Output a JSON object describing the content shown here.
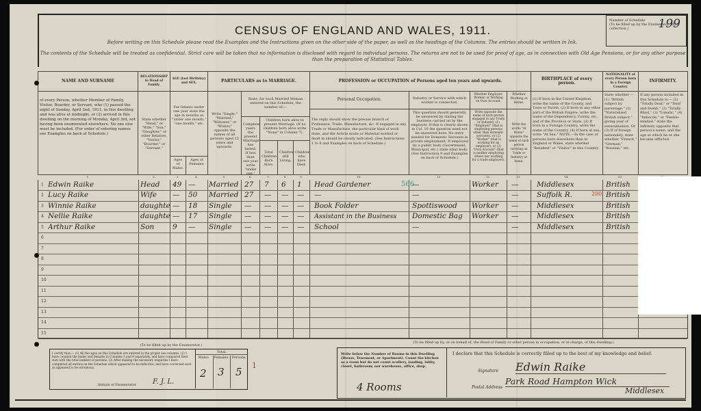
{
  "document": {
    "title": "CENSUS OF ENGLAND AND WALES, 1911.",
    "instruction": "Before writing on this Schedule please read the Examples and the Instructions given on the other side of the paper, as well as the headings of the Columns. The entries should be written in Ink.",
    "confidential": "The contents of the Schedule will be treated as confidential. Strict care will be taken that no information is disclosed with regard to individual persons. The returns are not to be used for proof of age, as in connection with Old Age Pensions, or for any other purpose than the preparation of Statistical Tables.",
    "schedule_label": "Number of Schedule",
    "schedule_note": "(To be filled up by the Enumerator after collection.)",
    "schedule_number": "199"
  },
  "headers": {
    "name": "NAME AND SURNAME",
    "name_desc": "of every Person, whether Member of Family, Visitor, Boarder, or Servant, who (1) passed the night of Sunday, April 2nd, 1911, in this dwelling and was alive at midnight, or (2) arrived in this dwelling on the morning of Monday, April 3rd, not having been enumerated elsewhere. No one else must be included. (For order of entering names see Examples on back of Schedule.)",
    "relationship": "RELATIONSHIP to Head of Family.",
    "relationship_desc": "State whether \"Head,\" or \"Wife,\" \"Son,\" \"Daughter,\" or other Relative, \"Visitor,\" \"Boarder,\" or \"Servant.\"",
    "age": "AGE (last Birthday) and SEX.",
    "age_desc": "For Infants under one year state the age in months as \"under one month,\" \"one month,\" etc.",
    "age_males": "Ages of Males.",
    "age_females": "Ages of Females.",
    "marriage": "PARTICULARS as to MARRIAGE.",
    "marriage_desc": "Write \"Single,\" \"Married,\" \"Widower,\" or \"Widow,\" opposite the names of all persons aged 15 years and upwards.",
    "married_woman": "State, for each Married Woman entered on this Schedule, the number of:—",
    "years_married": "Completed years the present Marriage has lasted. If less than one year write \"under one.\"",
    "children_born": "Children born alive to present Marriage. (If no children born alive write \"None\" in Column 7).",
    "total_children": "Total Children Born Alive.",
    "children_living": "Children still Living.",
    "children_died": "Children who have Died.",
    "profession": "PROFESSION or OCCUPATION of Persons aged ten years and upwards.",
    "personal_occupation": "Personal Occupation.",
    "personal_occupation_desc": "The reply should show the precise branch of Profession, Trade, Manufacture, &c. If engaged in any Trade or Manufacture, the particular kind of work done, and the Article made or Material worked or dealt in should be clearly indicated. (See Instructions 1 to 8 and Examples on back of Schedule.)",
    "industry": "Industry or Service with which worker is connected.",
    "industry_desc": "This question should generally be answered by stating the business carried on by the employer. If this is clearly shown in Col. 10 the question need not be answered here. No entry needed for Domestic Servants in private employment. If employed by a public body (Government, Municipal, etc.) state what body. (See Instruction 9 and Examples on back of Schedule.)",
    "employer": "Whether Employer, Worker, or Working on Own Account.",
    "employer_desc": "Write opposite the name of each person engaged in any Trade or Industry, (1) \"Employer\" (that is employing persons other than domestic servants), or (2) \"Worker\" (that is working for an employer), or (3) \"Own Account\" (that is neither employing others nor working for a trade employer).",
    "at_home": "Whether Working at Home.",
    "at_home_desc": "Write the words \"At Home\" opposite the name of each person carrying on Trade or Industry at home.",
    "birthplace": "BIRTHPLACE of every person.",
    "birthplace_desc": "(1) If born in the United Kingdom, write the name of the County, and Town or Parish. (2) If born in any other part of the British Empire, write the name of the Dependency, Colony, etc., and of the Province or State. (3) If born in a Foreign Country, write the name of the Country. (4) If born at sea, write \"At Sea.\" NOTE.—In the case of persons born elsewhere than in England or Wales, state whether \"Resident\" or \"Visitor\" in this Country.",
    "nationality": "NATIONALITY of every Person born in a Foreign Country.",
    "nationality_desc": "State whether — (1) \"British subject by parentage.\" (2) \"Naturalised British subject,\" giving year of naturalisation. Or (3) If of foreign nationality, state whether \"French,\" \"German,\" \"Russian,\" etc.",
    "infirmity": "INFIRMITY.",
    "infirmity_desc": "If any person included in this Schedule is:— (1) \"Totally Deaf,\" or \"Deaf and Dumb,\" (2) \"Totally Blind,\" (3) \"Lunatic,\" (4) \"Imbecile,\" or \"Feeble-minded,\" state the infirmity opposite that person's name, and the age at which he or she became afflicted.",
    "column_numbers": [
      "1.",
      "2.",
      "3.",
      "4.",
      "5.",
      "6.",
      "7.",
      "8.",
      "9.",
      "10.",
      "11.",
      "12.",
      "13.",
      "14.",
      "15.",
      "16."
    ]
  },
  "rows": [
    {
      "no": "1",
      "name": "Edwin Raike",
      "relationship": "Head",
      "age_male": "49",
      "age_female": "—",
      "marriage": "Married",
      "years": "27",
      "total": "7",
      "living": "6",
      "died": "1",
      "occupation": "Head Gardener",
      "occ_code": "566",
      "industry": "—",
      "employment": "Worker",
      "at_home": "—",
      "birthplace": "Middlesex",
      "nationality": "British"
    },
    {
      "no": "2",
      "name": "Lucy Raike",
      "relationship": "Wife",
      "age_male": "—",
      "age_female": "50",
      "marriage": "Married",
      "years": "27",
      "total": "—",
      "living": "—",
      "died": "—",
      "occupation": "—",
      "occ_code": "",
      "industry": "—",
      "employment": "",
      "at_home": "—",
      "birthplace": "Suffolk R.",
      "bp_code": "200",
      "nationality": "British"
    },
    {
      "no": "3",
      "name": "Winnie Raike",
      "relationship": "daughter",
      "age_male": "—",
      "age_female": "18",
      "marriage": "Single",
      "years": "—",
      "total": "—",
      "living": "—",
      "died": "—",
      "occupation": "Book Folder",
      "occ_code": "",
      "industry": "Spottiswood",
      "employment": "Worker",
      "at_home": "—",
      "birthplace": "Middlesex",
      "nationality": "British"
    },
    {
      "no": "4",
      "name": "Nellie Raike",
      "relationship": "daughter",
      "age_male": "—",
      "age_female": "17",
      "marriage": "Single",
      "years": "—",
      "total": "—",
      "living": "—",
      "died": "—",
      "occupation": "Assistant in the Business",
      "occ_code": "",
      "industry": "Domestic Bag",
      "employment": "Worker",
      "at_home": "—",
      "birthplace": "Middlesex",
      "nationality": "British"
    },
    {
      "no": "5",
      "name": "Arthur Raike",
      "relationship": "Son",
      "age_male": "9",
      "age_female": "—",
      "marriage": "Single",
      "years": "—",
      "total": "—",
      "living": "—",
      "died": "—",
      "occupation": "School",
      "occ_code": "",
      "industry": "—",
      "employment": "",
      "at_home": "—",
      "birthplace": "Middlesex",
      "nationality": "British"
    }
  ],
  "row_numbers": [
    "1",
    "2",
    "3",
    "4",
    "5",
    "6",
    "7",
    "8",
    "9",
    "10",
    "11",
    "12",
    "13",
    "14",
    "15"
  ],
  "enumerator": {
    "heading": "(To be filled up by the Enumerator.)",
    "certify": "I certify that:— (1) All the ages on this Schedule are entered in the proper sex columns. (2) I have counted the males and females in Columns 3 and 4 separately, and have compared their sum with the total number of persons. (3) After making the necessary enquiries I have completed all entries on the Schedule which appeared to be defective, and have corrected such as appeared to be erroneous.",
    "initials_label": "Initials of Enumerator",
    "initials": "F. J. L.",
    "total_label": "Total.",
    "males_label": "Males.",
    "females_label": "Females.",
    "persons_label": "Persons.",
    "males": "2",
    "females": "3",
    "persons": "5",
    "mark": "1"
  },
  "occupier": {
    "heading": "(To be filled up by, or on behalf of, the Head of Family or other person in occupation, or in charge, of this dwelling.)",
    "rooms_instruction": "Write below the Number of Rooms in this Dwelling (House, Tenement, or Apartment). Count the kitchen as a room but do not count scullery, landing, lobby, closet, bathroom; nor warehouse, office, shop.",
    "rooms": "4 Rooms",
    "declaration": "I declare that this Schedule is correctly filled up to the best of my knowledge and belief.",
    "signature_label": "Signature",
    "signature": "Edwin Raike",
    "address_label": "Postal Address",
    "address": "Park Road Hampton Wick",
    "address_line2": "Middlesex"
  },
  "colors": {
    "paper": "#d9d6c8",
    "ink": "#23201c",
    "annotation_green": "#3f8f86",
    "annotation_red": "#c0392b"
  }
}
